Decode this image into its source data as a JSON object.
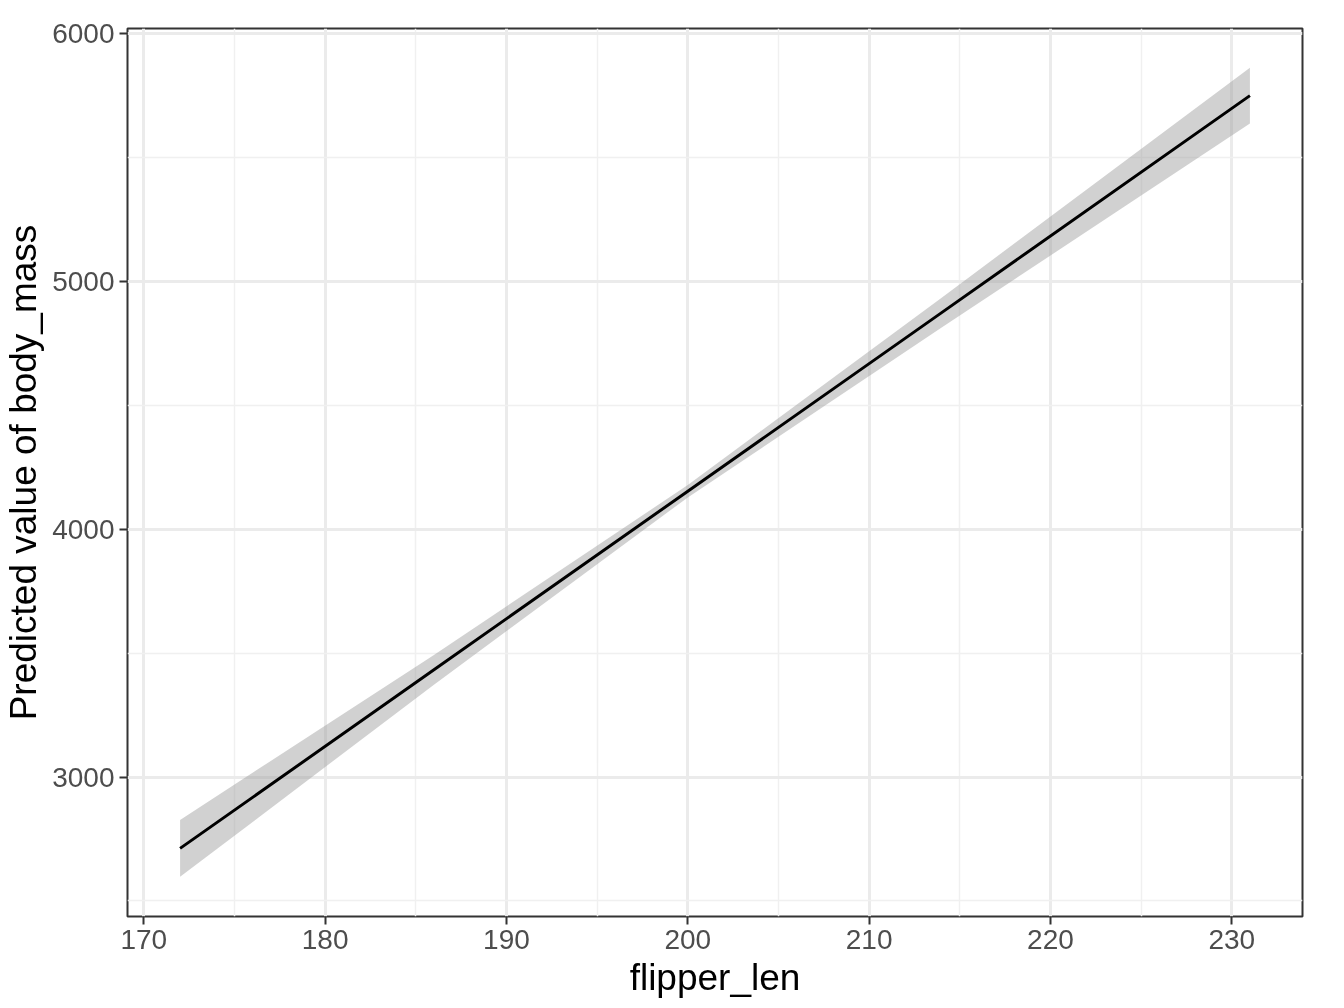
{
  "chart_data": {
    "type": "line",
    "xlabel": "flipper_len",
    "ylabel": "Predicted value of body_mass",
    "x": [
      172,
      186,
      200,
      214,
      231
    ],
    "series": [
      {
        "color": "#000000",
        "values": [
          2712,
          3433,
          4154,
          4875,
          5751
        ],
        "lower": [
          2597,
          3373,
          4129,
          4815,
          5638
        ],
        "upper": [
          2827,
          3493,
          4179,
          4935,
          5864
        ]
      }
    ],
    "xlim": [
      169.1,
      233.9
    ],
    "ylim": [
      2437,
      6022
    ],
    "xticks": [
      170,
      180,
      190,
      200,
      210,
      220,
      230
    ],
    "yticks": [
      3000,
      4000,
      5000,
      6000
    ],
    "grid": true,
    "line_style": "solid",
    "marker": "none"
  }
}
